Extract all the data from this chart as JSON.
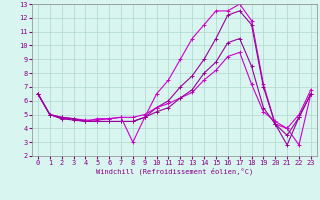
{
  "xlabel": "Windchill (Refroidissement éolien,°C)",
  "xlim": [
    -0.5,
    23.5
  ],
  "ylim": [
    2,
    13
  ],
  "xticks": [
    0,
    1,
    2,
    3,
    4,
    5,
    6,
    7,
    8,
    9,
    10,
    11,
    12,
    13,
    14,
    15,
    16,
    17,
    18,
    19,
    20,
    21,
    22,
    23
  ],
  "yticks": [
    2,
    3,
    4,
    5,
    6,
    7,
    8,
    9,
    10,
    11,
    12,
    13
  ],
  "bg_color": "#d9f5f0",
  "grid_color": "#aed4cc",
  "line_colors": [
    "#cc00cc",
    "#990099",
    "#cc00cc",
    "#990099"
  ],
  "curves": [
    [
      6.5,
      5.0,
      4.7,
      4.7,
      4.6,
      4.6,
      4.7,
      4.8,
      3.0,
      4.8,
      6.5,
      7.5,
      9.0,
      10.5,
      11.5,
      12.5,
      12.5,
      13.0,
      11.8,
      7.2,
      4.3,
      4.0,
      2.8,
      6.5
    ],
    [
      6.5,
      5.0,
      4.7,
      4.6,
      4.5,
      4.5,
      4.5,
      4.5,
      4.5,
      4.8,
      5.5,
      6.0,
      7.0,
      7.8,
      9.0,
      10.5,
      12.2,
      12.5,
      11.5,
      7.0,
      4.3,
      2.8,
      4.8,
      6.5
    ],
    [
      6.5,
      5.0,
      4.8,
      4.7,
      4.5,
      4.7,
      4.7,
      4.8,
      4.8,
      5.0,
      5.5,
      5.8,
      6.2,
      6.6,
      7.5,
      8.2,
      9.2,
      9.5,
      7.2,
      5.2,
      4.5,
      4.0,
      5.0,
      6.8
    ],
    [
      6.5,
      5.0,
      4.8,
      4.7,
      4.5,
      4.5,
      4.5,
      4.5,
      4.5,
      4.8,
      5.2,
      5.5,
      6.2,
      6.8,
      8.0,
      8.8,
      10.2,
      10.5,
      8.5,
      5.5,
      4.3,
      3.5,
      4.8,
      6.5
    ]
  ],
  "tick_fontsize": 5,
  "xlabel_fontsize": 5
}
